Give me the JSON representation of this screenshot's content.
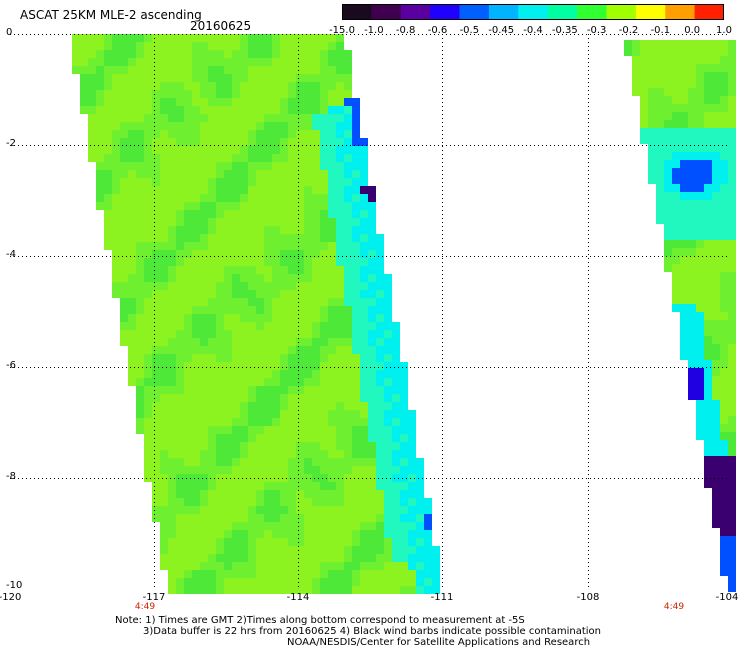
{
  "header": {
    "title": "ASCAT 25KM MLE-2 ascending",
    "date": "20160625"
  },
  "colorbar": {
    "labels": [
      "-15.0",
      "-1.0",
      "-0.8",
      "-0.6",
      "-0.5",
      "-0.45",
      "-0.4",
      "-0.35",
      "-0.3",
      "-0.2",
      "-0.1",
      "0.0",
      "1.0"
    ],
    "colors": [
      "#1a0a1e",
      "#400050",
      "#5a00a0",
      "#2000ff",
      "#0060ff",
      "#00b4ff",
      "#00f0f0",
      "#00ffa0",
      "#30ff30",
      "#a0ff00",
      "#ffff00",
      "#ffa000",
      "#ff2000"
    ]
  },
  "axes": {
    "y_labels": [
      "0",
      "-2",
      "-4",
      "-6",
      "-8",
      "-10"
    ],
    "x_labels": [
      "-120",
      "-117",
      "-114",
      "-111",
      "-108",
      "-104"
    ],
    "time_labels": [
      "4:49",
      "4:49"
    ]
  },
  "swath_colors": {
    "base": "#8cf220",
    "mid": "#6ef030",
    "deep": "#4ee838",
    "edge_cyan": "#00f0f0",
    "edge_aqua": "#20f8c0",
    "edge_blue": "#0050ff",
    "edge_deepblue": "#2000e0",
    "edge_purple": "#3a0070"
  },
  "notes": {
    "line1": "Note: 1) Times are GMT 2)Times along bottom correspond to measurement at -5S",
    "line2": "3)Data buffer is 22 hrs from 20160625 4) Black wind barbs indicate possible contamination",
    "line3": "NOAA/NESDIS/Center for Satellite Applications and Research"
  }
}
